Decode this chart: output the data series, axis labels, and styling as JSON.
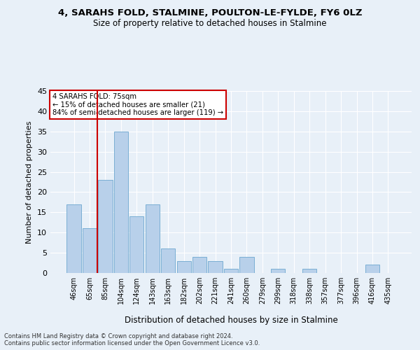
{
  "title_line1": "4, SARAHS FOLD, STALMINE, POULTON-LE-FYLDE, FY6 0LZ",
  "title_line2": "Size of property relative to detached houses in Stalmine",
  "xlabel": "Distribution of detached houses by size in Stalmine",
  "ylabel": "Number of detached properties",
  "categories": [
    "46sqm",
    "65sqm",
    "85sqm",
    "104sqm",
    "124sqm",
    "143sqm",
    "163sqm",
    "182sqm",
    "202sqm",
    "221sqm",
    "241sqm",
    "260sqm",
    "279sqm",
    "299sqm",
    "318sqm",
    "338sqm",
    "357sqm",
    "377sqm",
    "396sqm",
    "416sqm",
    "435sqm"
  ],
  "values": [
    17,
    11,
    23,
    35,
    14,
    17,
    6,
    3,
    4,
    3,
    1,
    4,
    0,
    1,
    0,
    1,
    0,
    0,
    0,
    2,
    0
  ],
  "bar_color": "#b8d0ea",
  "bar_edge_color": "#7aafd4",
  "annotation_line1": "4 SARAHS FOLD: 75sqm",
  "annotation_line2": "← 15% of detached houses are smaller (21)",
  "annotation_line3": "84% of semi-detached houses are larger (119) →",
  "annotation_box_color": "#ffffff",
  "annotation_box_edge": "#cc0000",
  "vline_color": "#cc0000",
  "vline_x": 1.5,
  "bg_color": "#e8f0f8",
  "grid_color": "#ffffff",
  "footer_line1": "Contains HM Land Registry data © Crown copyright and database right 2024.",
  "footer_line2": "Contains public sector information licensed under the Open Government Licence v3.0.",
  "ylim": [
    0,
    45
  ],
  "yticks": [
    0,
    5,
    10,
    15,
    20,
    25,
    30,
    35,
    40,
    45
  ]
}
